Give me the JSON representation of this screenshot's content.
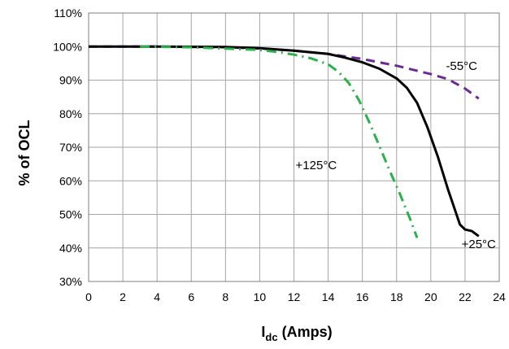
{
  "chart_data": {
    "type": "line",
    "title": "",
    "xlabel": "I_dc (Amps)",
    "xlabel_main": "I",
    "xlabel_sub": "dc",
    "xlabel_rest": " (Amps)",
    "ylabel": "% of OCL",
    "xlim": [
      0,
      24
    ],
    "ylim": [
      30,
      110
    ],
    "x_ticks": [
      0,
      2,
      4,
      6,
      8,
      10,
      12,
      14,
      16,
      18,
      20,
      22,
      24
    ],
    "x_tick_labels": [
      "0",
      "2",
      "4",
      "6",
      "8",
      "10",
      "12",
      "14",
      "16",
      "18",
      "20",
      "22",
      "24"
    ],
    "y_ticks": [
      30,
      40,
      50,
      60,
      70,
      80,
      90,
      100,
      110
    ],
    "y_tick_labels": [
      "30%",
      "40%",
      "50%",
      "60%",
      "70%",
      "80%",
      "90%",
      "100%",
      "110%"
    ],
    "grid": true,
    "series": [
      {
        "name": "-55°C",
        "color": "#6b2c91",
        "style": "dashed",
        "x": [
          0,
          4,
          8,
          10,
          12,
          14,
          16,
          18,
          20,
          21,
          22,
          22.8
        ],
        "y": [
          100,
          100,
          99.8,
          99.4,
          98.8,
          97.8,
          96.3,
          94.3,
          91.8,
          90.3,
          87.5,
          84.5
        ]
      },
      {
        "name": "+25°C",
        "color": "#000000",
        "style": "solid",
        "x": [
          0,
          4,
          8,
          10,
          12,
          14,
          15,
          16,
          17,
          18,
          18.6,
          19.2,
          19.8,
          20.4,
          21,
          21.4,
          21.7,
          22,
          22.4,
          22.8
        ],
        "y": [
          100,
          100,
          99.9,
          99.5,
          98.8,
          97.8,
          96.7,
          95.3,
          93.4,
          90.5,
          87.7,
          83.2,
          76,
          67.3,
          57.5,
          51.5,
          47,
          45.5,
          45,
          43.5
        ]
      },
      {
        "name": "+125°C",
        "color": "#2bb14b",
        "style": "dashdot",
        "x": [
          3,
          6,
          8,
          10,
          11,
          12,
          13,
          14,
          14.6,
          15.2,
          15.8,
          16.4,
          17,
          17.6,
          18.2,
          18.8,
          19.2
        ],
        "y": [
          100,
          99.8,
          99.4,
          99,
          98.4,
          97.6,
          96.5,
          94.7,
          92.5,
          89.2,
          84,
          77.5,
          70.3,
          63,
          56,
          48.5,
          43
        ]
      }
    ],
    "annotations": [
      {
        "text": "-55°C",
        "x": 21.8,
        "y": 93
      },
      {
        "text": "+125°C",
        "x": 13.3,
        "y": 63.5
      },
      {
        "text": "+25°C",
        "x": 22.8,
        "y": 40
      }
    ]
  }
}
